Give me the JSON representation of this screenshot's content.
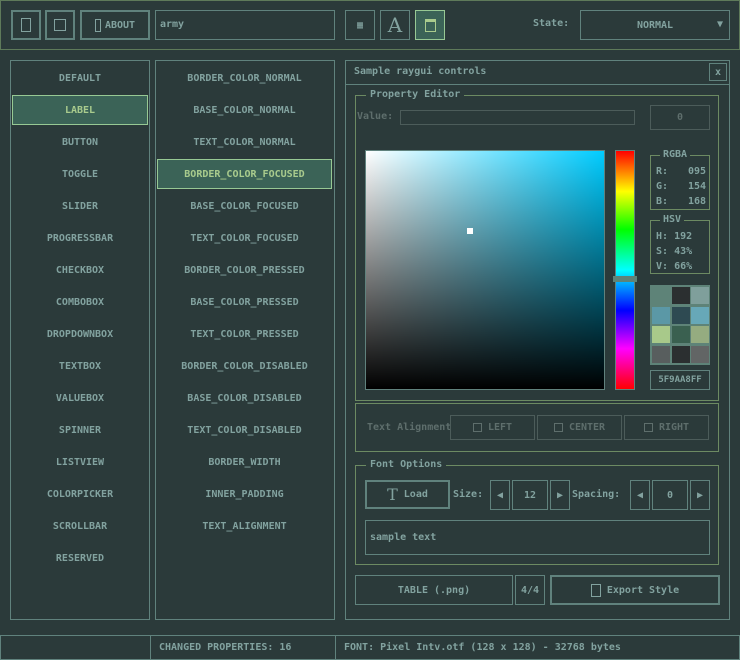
{
  "toolbar": {
    "about_label": "ABOUT",
    "style_name": "army",
    "state_label": "State:",
    "state_value": "NORMAL"
  },
  "controls": [
    "DEFAULT",
    "LABEL",
    "BUTTON",
    "TOGGLE",
    "SLIDER",
    "PROGRESSBAR",
    "CHECKBOX",
    "COMBOBOX",
    "DROPDOWNBOX",
    "TEXTBOX",
    "VALUEBOX",
    "SPINNER",
    "LISTVIEW",
    "COLORPICKER",
    "SCROLLBAR",
    "RESERVED"
  ],
  "controls_selected": 1,
  "properties": [
    "BORDER_COLOR_NORMAL",
    "BASE_COLOR_NORMAL",
    "TEXT_COLOR_NORMAL",
    "BORDER_COLOR_FOCUSED",
    "BASE_COLOR_FOCUSED",
    "TEXT_COLOR_FOCUSED",
    "BORDER_COLOR_PRESSED",
    "BASE_COLOR_PRESSED",
    "TEXT_COLOR_PRESSED",
    "BORDER_COLOR_DISABLED",
    "BASE_COLOR_DISABLED",
    "TEXT_COLOR_DISABLED",
    "BORDER_WIDTH",
    "INNER_PADDING",
    "TEXT_ALIGNMENT"
  ],
  "properties_selected": 3,
  "window": {
    "title": "Sample raygui controls",
    "close": "x"
  },
  "property_editor": {
    "title": "Property Editor",
    "value_label": "Value:",
    "value": "0",
    "rgba": {
      "title": "RGBA",
      "r_label": "R:",
      "r": "095",
      "g_label": "G:",
      "g": "154",
      "b_label": "B:",
      "b": "168"
    },
    "hsv": {
      "title": "HSV",
      "h_label": "H:",
      "h": "192",
      "s_label": "S:",
      "s": "43%",
      "v_label": "V:",
      "v": "66%"
    },
    "hex": "5F9AA8FF",
    "hue_deg": 192,
    "swatches": [
      "#5e8378",
      "#2b2f30",
      "#7f9f9b",
      "#5b98a6",
      "#2e4a52",
      "#67a8b8",
      "#a8c98a",
      "#3a6050",
      "#95ac80",
      "#585e5e",
      "#2b2f30",
      "#626565"
    ]
  },
  "text_align": {
    "label": "Text Alignment",
    "left": "LEFT",
    "center": "CENTER",
    "right": "RIGHT"
  },
  "font_options": {
    "title": "Font Options",
    "load": "Load",
    "size_label": "Size:",
    "size": "12",
    "spacing_label": "Spacing:",
    "spacing": "0",
    "sample": "sample text"
  },
  "bottom": {
    "table": "TABLE (.png)",
    "page": "4/4",
    "export": "Export Style"
  },
  "status": {
    "left": "",
    "changed": "CHANGED PROPERTIES: 16",
    "font": "FONT: Pixel Intv.otf (128 x 128) - 32768 bytes"
  }
}
